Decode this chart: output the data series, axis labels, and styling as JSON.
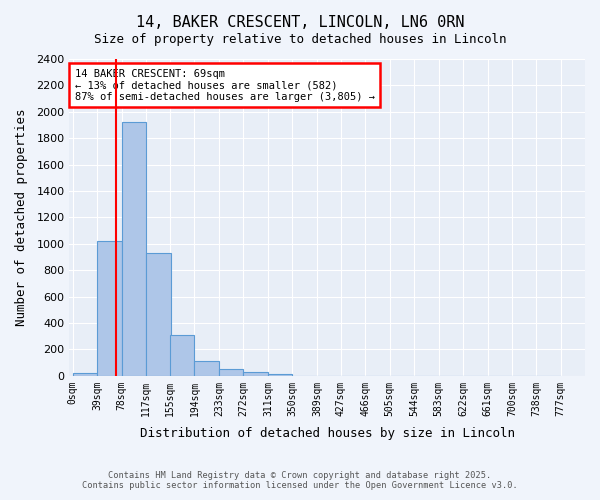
{
  "title_line1": "14, BAKER CRESCENT, LINCOLN, LN6 0RN",
  "title_line2": "Size of property relative to detached houses in Lincoln",
  "xlabel": "Distribution of detached houses by size in Lincoln",
  "ylabel": "Number of detached properties",
  "bar_color": "#aec6e8",
  "bar_edge_color": "#5b9bd5",
  "background_color": "#e8eef7",
  "grid_color": "#ffffff",
  "red_line_x": 69,
  "categories": [
    "0sqm",
    "39sqm",
    "78sqm",
    "117sqm",
    "155sqm",
    "194sqm",
    "233sqm",
    "272sqm",
    "311sqm",
    "350sqm",
    "389sqm",
    "427sqm",
    "466sqm",
    "505sqm",
    "544sqm",
    "583sqm",
    "622sqm",
    "661sqm",
    "700sqm",
    "738sqm",
    "777sqm"
  ],
  "bin_edges": [
    0,
    39,
    78,
    117,
    155,
    194,
    233,
    272,
    311,
    350,
    389,
    427,
    466,
    505,
    544,
    583,
    622,
    661,
    700,
    738,
    777
  ],
  "values": [
    20,
    1020,
    1920,
    930,
    310,
    110,
    55,
    30,
    15,
    0,
    0,
    0,
    0,
    0,
    0,
    0,
    0,
    0,
    0,
    0
  ],
  "ylim": [
    0,
    2400
  ],
  "yticks": [
    0,
    200,
    400,
    600,
    800,
    1000,
    1200,
    1400,
    1600,
    1800,
    2000,
    2200,
    2400
  ],
  "annotation_title": "14 BAKER CRESCENT: 69sqm",
  "annotation_line2": "← 13% of detached houses are smaller (582)",
  "annotation_line3": "87% of semi-detached houses are larger (3,805) →",
  "footnote1": "Contains HM Land Registry data © Crown copyright and database right 2025.",
  "footnote2": "Contains public sector information licensed under the Open Government Licence v3.0.",
  "fig_bg_color": "#f0f4fb"
}
